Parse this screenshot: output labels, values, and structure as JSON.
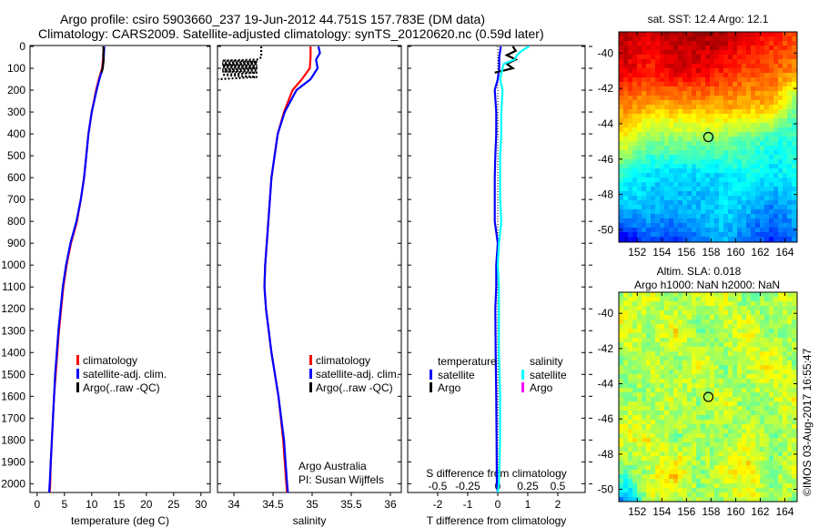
{
  "title": {
    "line1": "Argo profile: csiro 5903660_237 19-Jun-2012 44.751S 157.783E (DM data)",
    "line2": "Climatology: CARS2009. Satellite-adjusted climatology: synTS_20120620.nc (0.59d later)"
  },
  "credit": "©IMOS 03-Aug-2017 16:55:47",
  "colors": {
    "climatology": "#ff0000",
    "satellite": "#0000ff",
    "argo": "#000000",
    "sal_satellite": "#00ffff",
    "sal_argo": "#ff00ff"
  },
  "chart_data": [
    {
      "type": "line",
      "xlabel": "temperature (deg C)",
      "ylabel": "",
      "xlim": [
        -1.3,
        31.7
      ],
      "ylim": [
        0,
        2040
      ],
      "yreversed": true,
      "xticks": [
        0,
        5,
        10,
        15,
        20,
        25,
        30
      ],
      "yticks": [
        0,
        100,
        200,
        300,
        400,
        500,
        600,
        700,
        800,
        900,
        1000,
        1100,
        1200,
        1300,
        1400,
        1500,
        1600,
        1700,
        1800,
        1900,
        2000
      ],
      "legend": [
        "climatology",
        "satellite-adj. clim.",
        "Argo(..raw -QC)"
      ],
      "legend_placement": "center",
      "series": [
        {
          "name": "climatology",
          "color": "#ff0000",
          "depth": [
            0,
            50,
            100,
            150,
            200,
            300,
            400,
            500,
            600,
            700,
            800,
            900,
            1000,
            1100,
            1200,
            1300,
            1400,
            1500,
            1600,
            1700,
            1800,
            1900,
            2000,
            2040
          ],
          "values": [
            12.2,
            12.1,
            11.9,
            11.3,
            10.8,
            10.0,
            9.4,
            9.0,
            8.6,
            8.0,
            7.3,
            6.2,
            5.4,
            4.8,
            4.4,
            4.0,
            3.7,
            3.4,
            3.1,
            2.9,
            2.7,
            2.5,
            2.4,
            2.3
          ]
        },
        {
          "name": "satellite-adj. clim.",
          "color": "#0000ff",
          "depth": [
            0,
            50,
            100,
            150,
            200,
            300,
            400,
            500,
            600,
            700,
            800,
            900,
            1000,
            1100,
            1200,
            1300,
            1400,
            1500,
            1600,
            1700,
            1800,
            1900,
            2000,
            2040
          ],
          "values": [
            12.3,
            12.2,
            12.0,
            11.4,
            10.9,
            10.0,
            9.4,
            9.0,
            8.6,
            8.0,
            7.2,
            6.1,
            5.3,
            4.7,
            4.3,
            3.9,
            3.6,
            3.3,
            3.1,
            2.9,
            2.7,
            2.5,
            2.3,
            2.2
          ]
        },
        {
          "name": "Argo",
          "color": "#000000",
          "depth": [
            0,
            20,
            40,
            60,
            80,
            100,
            120
          ],
          "values": [
            12.1,
            12.2,
            12.1,
            12.2,
            12.1,
            12.0,
            11.8
          ]
        }
      ]
    },
    {
      "type": "line",
      "xlabel": "salinity",
      "xlim": [
        33.79,
        36.14
      ],
      "ylim": [
        0,
        2040
      ],
      "yreversed": true,
      "xticks": [
        34,
        34.5,
        35,
        35.5,
        36
      ],
      "legend": [
        "climatology",
        "satellite-adj. clim.",
        "Argo(..raw -QC)"
      ],
      "annotation": [
        "Argo Australia",
        "PI: Susan Wijffels"
      ],
      "series": [
        {
          "name": "climatology",
          "color": "#ff0000",
          "depth": [
            0,
            50,
            100,
            150,
            200,
            300,
            400,
            600,
            800,
            1000,
            1100,
            1200,
            1400,
            1600,
            1800,
            2000,
            2040
          ],
          "values": [
            34.98,
            34.98,
            34.97,
            34.87,
            34.75,
            34.64,
            34.56,
            34.48,
            34.44,
            34.4,
            34.39,
            34.41,
            34.48,
            34.57,
            34.63,
            34.67,
            34.68
          ]
        },
        {
          "name": "satellite-adj. clim.",
          "color": "#0000ff",
          "depth": [
            0,
            30,
            60,
            100,
            150,
            200,
            300,
            400,
            600,
            800,
            1000,
            1100,
            1200,
            1400,
            1600,
            1800,
            2000,
            2040
          ],
          "values": [
            35.08,
            35.1,
            35.05,
            35.07,
            34.98,
            34.8,
            34.65,
            34.56,
            34.48,
            34.44,
            34.4,
            34.39,
            34.41,
            34.48,
            34.57,
            34.64,
            34.68,
            34.69
          ]
        },
        {
          "name": "Argo",
          "color": "#000000",
          "depth": [
            0,
            30,
            50,
            60,
            65,
            70,
            75,
            80,
            85,
            90,
            95,
            100,
            105,
            110,
            115,
            120,
            130,
            140,
            150
          ],
          "values": [
            34.35,
            34.35,
            34.35,
            34.3,
            33.85,
            34.3,
            33.85,
            34.3,
            33.85,
            34.3,
            33.85,
            34.3,
            33.85,
            34.3,
            33.85,
            34.3,
            33.85,
            34.3,
            33.8
          ]
        }
      ]
    },
    {
      "type": "line",
      "xlabel": "T difference from climatology",
      "x2label": "S difference from climatology",
      "xlim": [
        -3.0,
        2.91
      ],
      "ylim": [
        0,
        2040
      ],
      "yreversed": true,
      "xticks": [
        -2,
        -1,
        0,
        1,
        2
      ],
      "x2ticks": [
        -0.5,
        -0.25,
        0,
        0.25,
        0.5
      ],
      "x2ticklabels": [
        "-0.5",
        "-0.25",
        "0",
        "0.25",
        "0.5"
      ],
      "x2_scale_factor": 4,
      "legend_temperature": {
        "title": "temperature",
        "items": [
          "satellite",
          "Argo"
        ]
      },
      "legend_salinity": {
        "title": "salinity",
        "items": [
          "satellite",
          "Argo"
        ]
      },
      "series": [
        {
          "name": "T satellite",
          "color": "#0000ff",
          "depth": [
            0,
            50,
            100,
            150,
            200,
            300,
            400,
            500,
            600,
            700,
            800,
            900,
            1000,
            1100,
            1200,
            1400,
            1600,
            1800,
            2000,
            2040
          ],
          "values": [
            0.1,
            0.05,
            0.05,
            0.0,
            -0.1,
            -0.05,
            -0.05,
            -0.08,
            -0.1,
            -0.1,
            -0.1,
            0.0,
            -0.05,
            -0.05,
            -0.08,
            -0.07,
            -0.05,
            -0.04,
            -0.03,
            0.0
          ]
        },
        {
          "name": "T Argo",
          "color": "#000000",
          "depth": [
            0,
            20,
            40,
            60,
            80,
            100,
            110,
            120
          ],
          "values": [
            0.5,
            0.6,
            0.3,
            0.6,
            0.3,
            0.5,
            0.2,
            -0.1
          ]
        },
        {
          "name": "S satellite",
          "color": "#00ffff",
          "depth": [
            0,
            20,
            40,
            60,
            80,
            100,
            150,
            200,
            300,
            400,
            500,
            600,
            700,
            800,
            900,
            1000,
            1100,
            1200,
            1400,
            1600,
            1800,
            2000,
            2040
          ],
          "values": [
            0.26,
            0.2,
            0.16,
            0.14,
            0.05,
            0.04,
            0.02,
            0.04,
            0.03,
            0.03,
            0.02,
            0.02,
            0.02,
            0.03,
            0.01,
            0.0,
            0.01,
            0.01,
            0.01,
            0.02,
            0.02,
            0.01,
            0.0
          ]
        }
      ]
    },
    {
      "type": "heatmap",
      "title": "sat. SST: 12.4  Argo: 12.1",
      "xlim": [
        150.5,
        165
      ],
      "ylim": [
        -50.7,
        -38.8
      ],
      "xticks": [
        152,
        154,
        156,
        158,
        160,
        162,
        164
      ],
      "yticks": [
        -40,
        -42,
        -44,
        -46,
        -48,
        -50
      ],
      "clim": [
        8,
        15
      ],
      "grid_lon": [
        151,
        153,
        155,
        157,
        159,
        161,
        163,
        165
      ],
      "grid_lat": [
        -39,
        -41,
        -43,
        -45,
        -47,
        -49,
        -51
      ],
      "values": [
        [
          14.6,
          14.3,
          14.7,
          14.7,
          14.7,
          14.3,
          14.0,
          13.6
        ],
        [
          14.3,
          13.9,
          14.3,
          14.3,
          13.9,
          13.6,
          13.5,
          13.2
        ],
        [
          13.2,
          12.9,
          12.9,
          13.0,
          13.0,
          12.9,
          12.9,
          11.2
        ],
        [
          12.2,
          11.5,
          11.5,
          11.5,
          11.5,
          11.2,
          10.8,
          10.8
        ],
        [
          10.8,
          10.4,
          10.3,
          10.3,
          10.4,
          10.8,
          10.4,
          10.8
        ],
        [
          10.1,
          10.1,
          10.0,
          10.1,
          10.4,
          10.1,
          9.7,
          10.1
        ],
        [
          8.3,
          9.4,
          9.0,
          9.7,
          10.1,
          9.4,
          9.0,
          9.7
        ]
      ],
      "marker": {
        "lon": 157.783,
        "lat": -44.751
      }
    },
    {
      "type": "heatmap",
      "title": "Altim. SLA: 0.018",
      "subtitle": "Argo h1000: NaN h2000: NaN",
      "xlim": [
        150.5,
        165
      ],
      "ylim": [
        -50.7,
        -38.8
      ],
      "xticks": [
        152,
        154,
        156,
        158,
        160,
        162,
        164
      ],
      "yticks": [
        -40,
        -42,
        -44,
        -46,
        -48,
        -50
      ],
      "clim": [
        -0.5,
        0.5
      ],
      "grid_lon": [
        151,
        153,
        155,
        157,
        159,
        161,
        163,
        165
      ],
      "grid_lat": [
        -39,
        -41,
        -43,
        -45,
        -47,
        -49,
        -51
      ],
      "values": [
        [
          0.05,
          0.1,
          0.0,
          0.08,
          0.1,
          0.0,
          0.05,
          0.1
        ],
        [
          0.12,
          0.0,
          0.15,
          0.0,
          0.05,
          0.12,
          0.0,
          0.05
        ],
        [
          0.0,
          0.1,
          0.0,
          0.12,
          0.0,
          0.08,
          0.15,
          0.0
        ],
        [
          0.05,
          0.0,
          0.1,
          0.0,
          0.1,
          0.0,
          0.05,
          0.12
        ],
        [
          0.1,
          0.12,
          0.0,
          0.05,
          0.0,
          0.1,
          0.0,
          0.05
        ],
        [
          0.0,
          0.05,
          0.2,
          0.0,
          0.1,
          0.15,
          0.0,
          0.1
        ],
        [
          -0.3,
          0.1,
          0.0,
          0.05,
          0.0,
          0.12,
          0.05,
          0.0
        ]
      ],
      "marker": {
        "lon": 157.783,
        "lat": -44.751
      }
    }
  ]
}
